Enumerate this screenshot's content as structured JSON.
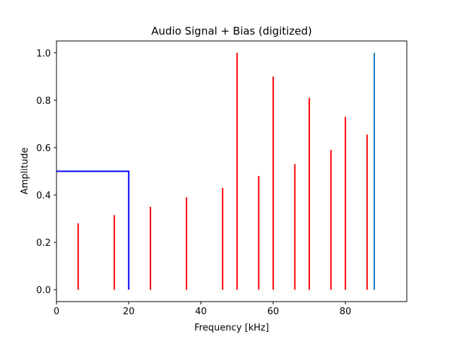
{
  "chart_data": {
    "type": "bar",
    "title": "Audio Signal + Bias (digitized)",
    "xlabel": "Frequency [kHz]",
    "ylabel": "Amplitude",
    "xlim": [
      0,
      97
    ],
    "ylim": [
      -0.05,
      1.05
    ],
    "xticks": [
      0,
      20,
      40,
      60,
      80
    ],
    "yticks": [
      0.0,
      0.2,
      0.4,
      0.6,
      0.8,
      1.0
    ],
    "grid": false,
    "series": [
      {
        "type": "step",
        "color": "#0000ff",
        "points": [
          [
            0,
            0.5
          ],
          [
            20,
            0.5
          ],
          [
            20,
            0.0
          ]
        ]
      },
      {
        "type": "stem",
        "color": "#ff0000",
        "x": [
          6,
          16,
          26,
          36,
          46,
          50,
          56,
          60,
          66,
          70,
          76,
          80,
          86
        ],
        "values": [
          0.28,
          0.315,
          0.35,
          0.39,
          0.43,
          1.0,
          0.48,
          0.9,
          0.53,
          0.81,
          0.59,
          0.73,
          0.655
        ]
      },
      {
        "type": "stem",
        "color": "#1f77b4",
        "x": [
          88
        ],
        "values": [
          1.0
        ]
      }
    ]
  }
}
